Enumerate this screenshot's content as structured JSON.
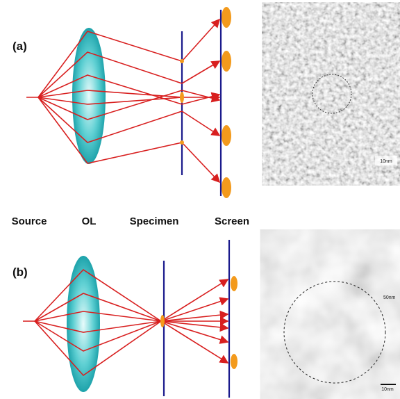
{
  "panels": [
    {
      "label": "(a)",
      "scale_label": "10nm"
    },
    {
      "label": "(b)",
      "annotation": "50nm",
      "scale_label": "10nm"
    }
  ],
  "labels": [
    "Source",
    "OL",
    "Specimen",
    "Screen"
  ]
}
